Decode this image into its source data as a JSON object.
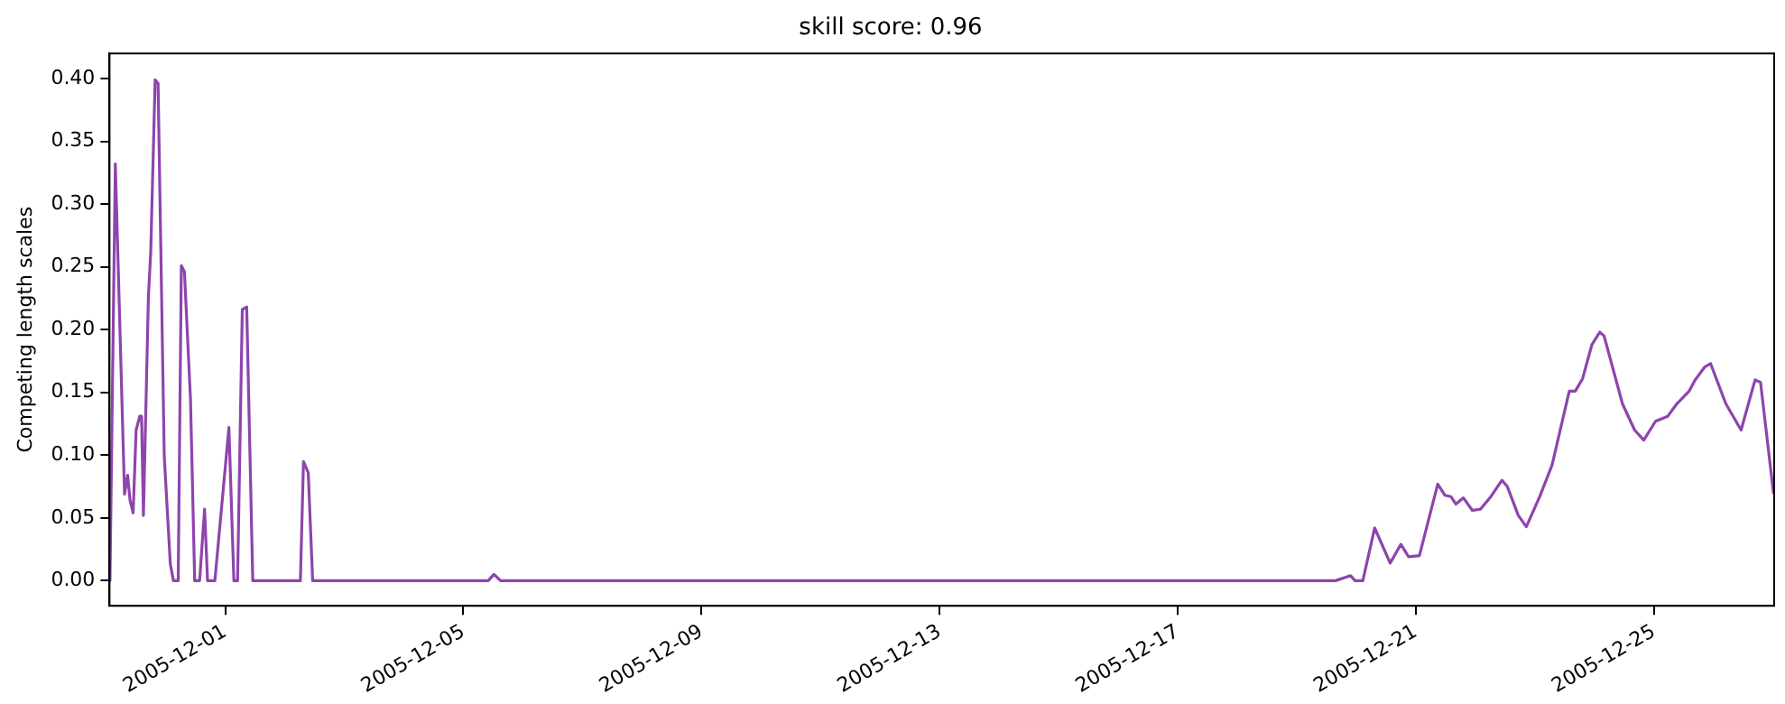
{
  "chart_data": {
    "type": "line",
    "title": "skill score: 0.96",
    "ylabel": "Competing length scales",
    "x": [
      "2005-11-29T01:30",
      "2005-11-29T03:40",
      "2005-11-29T07:23",
      "2005-11-29T08:38",
      "2005-11-29T09:36",
      "2005-11-29T10:51",
      "2005-11-29T12:03",
      "2005-11-29T13:31",
      "2005-11-29T14:15",
      "2005-11-29T15:00",
      "2005-11-29T17:00",
      "2005-11-29T17:57",
      "2005-11-29T19:43",
      "2005-11-29T20:54",
      "2005-11-29T23:24",
      "2005-11-30T01:51",
      "2005-11-30T03:06",
      "2005-11-30T05:01",
      "2005-11-30T06:17",
      "2005-11-30T07:32",
      "2005-11-30T09:58",
      "2005-11-30T11:40",
      "2005-11-30T13:39",
      "2005-11-30T15:39",
      "2005-11-30T16:51",
      "2005-11-30T19:48",
      "2005-12-01T01:28",
      "2005-12-01T03:28",
      "2005-12-01T04:57",
      "2005-12-01T06:52",
      "2005-12-01T08:38",
      "2005-12-01T11:05",
      "2005-12-02T06:17",
      "2005-12-02T07:32",
      "2005-12-02T09:27",
      "2005-12-02T11:14",
      "2005-12-05T10:00",
      "2005-12-05T12:20",
      "2005-12-05T15:00",
      "2005-12-19T15:36",
      "2005-12-19T21:43",
      "2005-12-19T23:31",
      "2005-12-20T02:39",
      "2005-12-20T07:26",
      "2005-12-20T13:40",
      "2005-12-20T18:00",
      "2005-12-20T21:07",
      "2005-12-21T01:28",
      "2005-12-21T08:51",
      "2005-12-21T11:46",
      "2005-12-21T14:10",
      "2005-12-21T16:12",
      "2005-12-21T19:12",
      "2005-12-21T22:48",
      "2005-12-22T02:05",
      "2005-12-22T06:17",
      "2005-12-22T10:43",
      "2005-12-22T12:55",
      "2005-12-22T17:21",
      "2005-12-22T20:34",
      "2005-12-23T01:59",
      "2005-12-23T06:56",
      "2005-12-23T13:53",
      "2005-12-23T16:19",
      "2005-12-23T19:16",
      "2005-12-23T23:00",
      "2005-12-24T02:10",
      "2005-12-24T03:55",
      "2005-12-24T11:19",
      "2005-12-24T16:14",
      "2005-12-24T19:55",
      "2005-12-25T00:40",
      "2005-12-25T05:36",
      "2005-12-25T09:17",
      "2005-12-25T14:13",
      "2005-12-25T16:41",
      "2005-12-25T20:23",
      "2005-12-25T22:51",
      "2005-12-26T05:00",
      "2005-12-26T11:10",
      "2005-12-26T16:48",
      "2005-12-26T19:00",
      "2005-12-27T00:13"
    ],
    "series": [
      {
        "color": "#8e44ad",
        "values": [
          0,
          0.332,
          0.069,
          0.084,
          0.064,
          0.054,
          0.12,
          0.131,
          0.131,
          0.052,
          0.226,
          0.262,
          0.399,
          0.396,
          0.099,
          0.013,
          0,
          0,
          0.251,
          0.246,
          0.145,
          0,
          0,
          0.057,
          0,
          0,
          0.122,
          0,
          0,
          0.216,
          0.218,
          0,
          0,
          0.095,
          0.086,
          0,
          0,
          0.005,
          0,
          0,
          0.004,
          0,
          0,
          0.042,
          0.014,
          0.029,
          0.019,
          0.02,
          0.077,
          0.068,
          0.067,
          0.061,
          0.066,
          0.056,
          0.057,
          0.067,
          0.08,
          0.075,
          0.052,
          0.043,
          0.067,
          0.092,
          0.151,
          0.151,
          0.161,
          0.188,
          0.198,
          0.195,
          0.141,
          0.12,
          0.112,
          0.127,
          0.131,
          0.141,
          0.151,
          0.16,
          0.17,
          0.173,
          0.141,
          0.12,
          0.16,
          0.158,
          0.07
        ]
      }
    ],
    "xlim": [
      "2005-11-29T01:20",
      "2005-12-27T00:30"
    ],
    "xticks": [
      "2005-12-01",
      "2005-12-05",
      "2005-12-09",
      "2005-12-13",
      "2005-12-17",
      "2005-12-21",
      "2005-12-25"
    ],
    "ylim": [
      -0.02,
      0.42
    ],
    "yticks": [
      {
        "value": 0,
        "label": "0.00"
      },
      {
        "value": 0.05,
        "label": "0.05"
      },
      {
        "value": 0.1,
        "label": "0.10"
      },
      {
        "value": 0.15,
        "label": "0.15"
      },
      {
        "value": 0.2,
        "label": "0.20"
      },
      {
        "value": 0.25,
        "label": "0.25"
      },
      {
        "value": 0.3,
        "label": "0.30"
      },
      {
        "value": 0.35,
        "label": "0.35"
      },
      {
        "value": 0.4,
        "label": "0.40"
      }
    ],
    "grid": false,
    "legend": false,
    "marker": "none",
    "line_style": "solid"
  }
}
